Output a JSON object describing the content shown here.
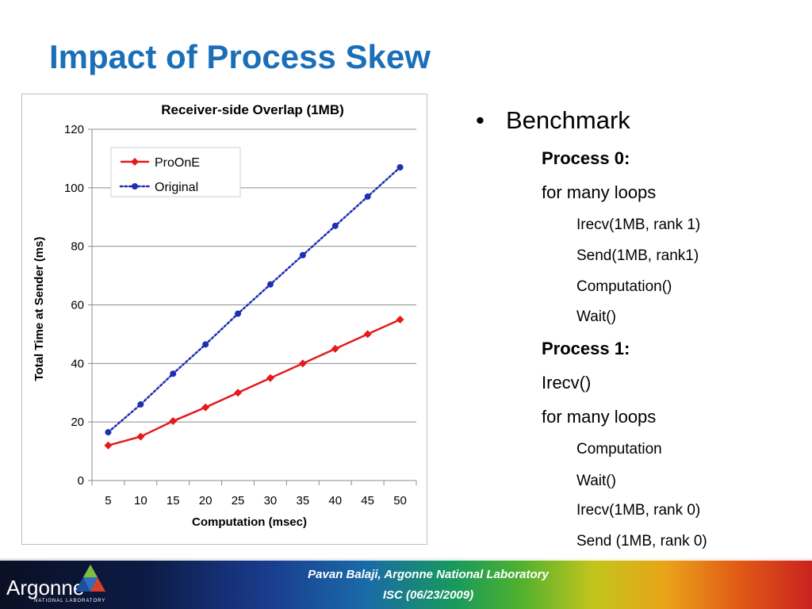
{
  "slide": {
    "title": "Impact of Process Skew"
  },
  "chart_data": {
    "type": "line",
    "title": "Receiver-side Overlap (1MB)",
    "xlabel": "Computation (msec)",
    "ylabel": "Total Time at Sender (ms)",
    "categories": [
      "5",
      "10",
      "15",
      "20",
      "25",
      "30",
      "35",
      "40",
      "45",
      "50"
    ],
    "ylim": [
      0,
      120
    ],
    "yticks": [
      0,
      20,
      40,
      60,
      80,
      100,
      120
    ],
    "grid": true,
    "legend": "top-left",
    "series": [
      {
        "name": "ProOnE",
        "color": "#e41a1c",
        "style": "solid",
        "marker": "diamond",
        "values": [
          12,
          15,
          20.3,
          25,
          30,
          35,
          40,
          45,
          50,
          55
        ]
      },
      {
        "name": "Original",
        "color": "#1f2fb4",
        "style": "dotted",
        "marker": "circle",
        "values": [
          16.5,
          26,
          36.5,
          46.5,
          57,
          67,
          77,
          87,
          97,
          107
        ]
      }
    ]
  },
  "benchmark": {
    "heading": "Benchmark",
    "bullet": "•",
    "lines": [
      {
        "text": "Process 0:",
        "level": 1,
        "bold": true
      },
      {
        "text": "for many loops",
        "level": 1,
        "bold": false
      },
      {
        "text": "Irecv(1MB, rank 1)",
        "level": 2,
        "bold": false
      },
      {
        "text": "Send(1MB, rank1)",
        "level": 2,
        "bold": false
      },
      {
        "text": "Computation()",
        "level": 2,
        "bold": false
      },
      {
        "text": "Wait()",
        "level": 2,
        "bold": false
      },
      {
        "text": "Process 1:",
        "level": 1,
        "bold": true
      },
      {
        "text": "Irecv()",
        "level": 1,
        "bold": false
      },
      {
        "text": "for many loops",
        "level": 1,
        "bold": false
      },
      {
        "text": "Computation",
        "level": 2,
        "bold": false
      },
      {
        "text": "Wait()",
        "level": 2,
        "bold": false
      },
      {
        "text": "Irecv(1MB, rank 0)",
        "level": 2,
        "bold": false
      },
      {
        "text": "Send (1MB, rank 0)",
        "level": 2,
        "bold": false
      }
    ]
  },
  "footer": {
    "logo": "Argonne",
    "logo_sub": "NATIONAL LABORATORY",
    "credit_line1": "Pavan Balaji, Argonne National Laboratory",
    "credit_line2": "ISC (06/23/2009)"
  }
}
